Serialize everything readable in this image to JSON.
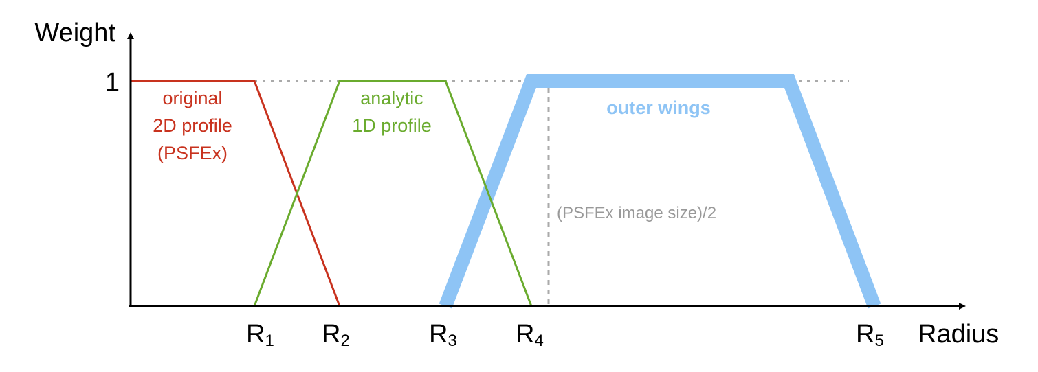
{
  "axes": {
    "y_label": "Weight",
    "x_label": "Radius",
    "y_tick": "1",
    "x_ticks": [
      {
        "main": "R",
        "sub": "1"
      },
      {
        "main": "R",
        "sub": "2"
      },
      {
        "main": "R",
        "sub": "3"
      },
      {
        "main": "R",
        "sub": "4"
      },
      {
        "main": "R",
        "sub": "5"
      }
    ]
  },
  "curves": {
    "original": {
      "lines": [
        "original",
        "2D profile",
        "(PSFEx)"
      ],
      "color": "#c8321e"
    },
    "analytic": {
      "lines": [
        "analytic",
        "1D profile"
      ],
      "color": "#6aab2e"
    },
    "wings": {
      "label": "outer wings",
      "color": "#8ec4f5"
    }
  },
  "annotation": {
    "text": "(PSFEx image size)/2",
    "color": "#999999"
  }
}
